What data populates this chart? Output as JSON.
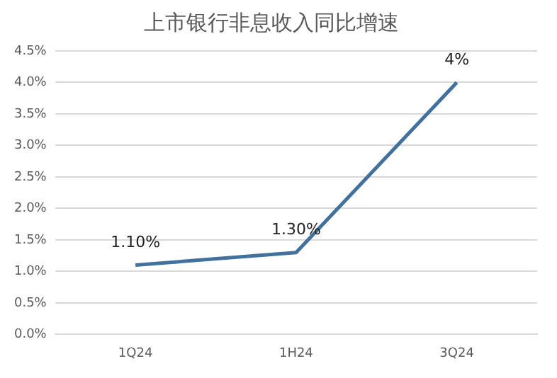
{
  "chart_data": {
    "type": "line",
    "title": "上市银行非息收入同比增速",
    "categories": [
      "1Q24",
      "1H24",
      "3Q24"
    ],
    "series": [
      {
        "color": "#41719c",
        "values": [
          1.1,
          1.3,
          4
        ],
        "value_labels": [
          "1.10%",
          "1.30%",
          "4%"
        ]
      }
    ],
    "ylim": [
      0,
      4.5
    ],
    "yticks": [
      {
        "value": 0,
        "label": "0.0%"
      },
      {
        "value": 0.5,
        "label": "0.5%"
      },
      {
        "value": 1,
        "label": "1.0%"
      },
      {
        "value": 1.5,
        "label": "1.5%"
      },
      {
        "value": 2,
        "label": "2.0%"
      },
      {
        "value": 2.5,
        "label": "2.5%"
      },
      {
        "value": 3,
        "label": "3.0%"
      },
      {
        "value": 3.5,
        "label": "3.5%"
      },
      {
        "value": 4,
        "label": "4.0%"
      },
      {
        "value": 4.5,
        "label": "4.5%"
      }
    ],
    "grid": "y",
    "legend": false,
    "marker": "none",
    "line_style": "solid"
  }
}
